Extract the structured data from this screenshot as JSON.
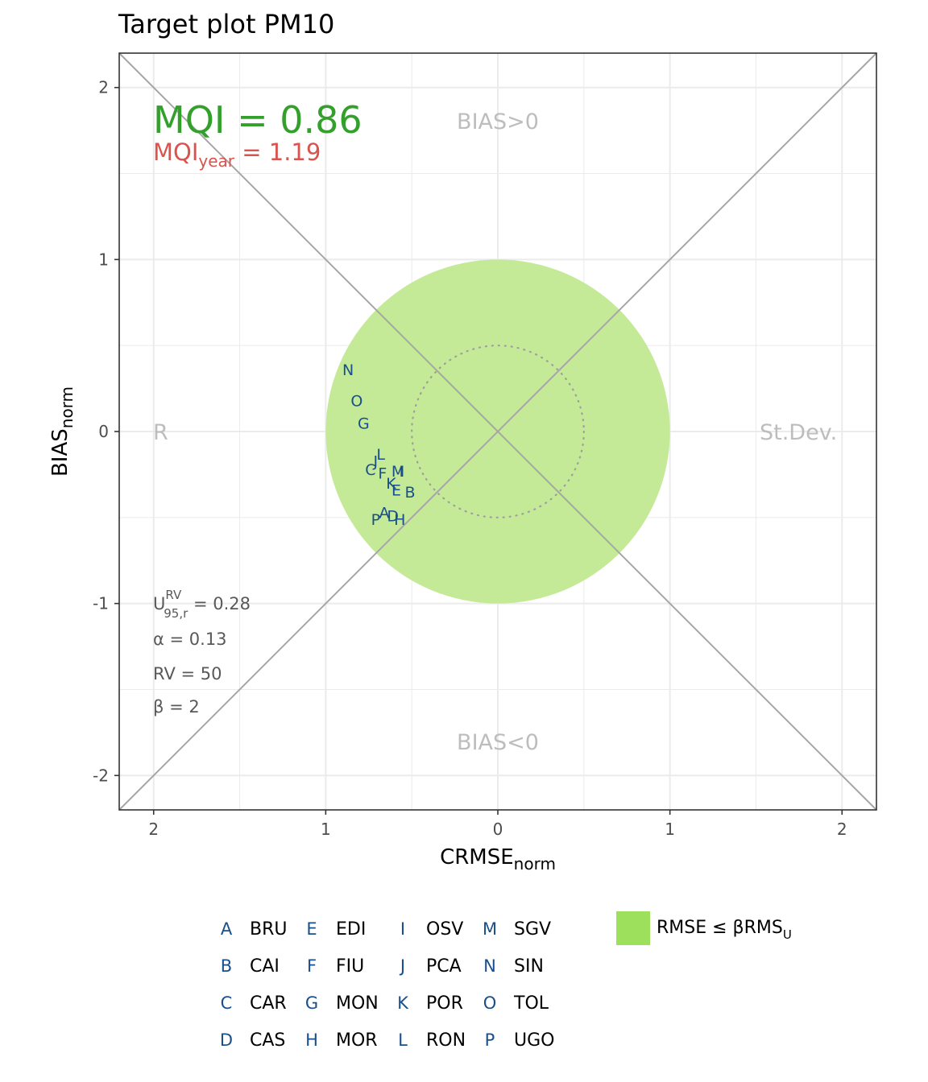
{
  "chart_data": {
    "type": "scatter",
    "title": "Target plot PM10",
    "xlabel": {
      "main": "CRMSE",
      "sub": "norm"
    },
    "ylabel": {
      "main": "BIAS",
      "sub": "norm"
    },
    "xlim": [
      2.2,
      -2.2
    ],
    "ylim": [
      -2.2,
      2.2
    ],
    "x_ticks": [
      2,
      1,
      0,
      1,
      2
    ],
    "x_tick_values": [
      2,
      1,
      0,
      -1,
      -2
    ],
    "y_ticks": [
      "-2",
      "-1",
      "0",
      "1",
      "2"
    ],
    "y_tick_values": [
      -2,
      -1,
      0,
      1,
      2
    ],
    "grid": true,
    "target_circle_radius": 1,
    "inner_circle_radius": 0.5,
    "quadrant_labels": {
      "top": "BIAS>0",
      "bottom": "BIAS<0",
      "left": "R",
      "right": "St.Dev."
    },
    "mqi": {
      "text": "MQI = 0.86",
      "value": 0.86
    },
    "mqi_year": {
      "main": "MQI",
      "sub": "year",
      "rest": " = 1.19",
      "value": 1.19
    },
    "stats": {
      "u": {
        "main": "U",
        "sup": "RV",
        "sub": "95,r",
        "rest": " = 0.28"
      },
      "alpha": "α = 0.13",
      "rv": "RV = 50",
      "beta": "β = 2"
    },
    "points": [
      {
        "code": "A",
        "x": 0.66,
        "y": -0.47
      },
      {
        "code": "B",
        "x": 0.51,
        "y": -0.35
      },
      {
        "code": "C",
        "x": 0.74,
        "y": -0.22
      },
      {
        "code": "D",
        "x": 0.61,
        "y": -0.49
      },
      {
        "code": "E",
        "x": 0.59,
        "y": -0.34
      },
      {
        "code": "F",
        "x": 0.67,
        "y": -0.24
      },
      {
        "code": "G",
        "x": 0.78,
        "y": 0.05
      },
      {
        "code": "H",
        "x": 0.57,
        "y": -0.51
      },
      {
        "code": "I",
        "x": 0.56,
        "y": -0.23
      },
      {
        "code": "J",
        "x": 0.71,
        "y": -0.17
      },
      {
        "code": "K",
        "x": 0.62,
        "y": -0.3
      },
      {
        "code": "L",
        "x": 0.68,
        "y": -0.13
      },
      {
        "code": "M",
        "x": 0.58,
        "y": -0.23
      },
      {
        "code": "N",
        "x": 0.87,
        "y": 0.36
      },
      {
        "code": "O",
        "x": 0.82,
        "y": 0.18
      },
      {
        "code": "P",
        "x": 0.71,
        "y": -0.51
      }
    ],
    "legend": {
      "entries": [
        {
          "code": "A",
          "name": "BRU"
        },
        {
          "code": "B",
          "name": "CAI"
        },
        {
          "code": "C",
          "name": "CAR"
        },
        {
          "code": "D",
          "name": "CAS"
        },
        {
          "code": "E",
          "name": "EDI"
        },
        {
          "code": "F",
          "name": "FIU"
        },
        {
          "code": "G",
          "name": "MON"
        },
        {
          "code": "H",
          "name": "MOR"
        },
        {
          "code": "I",
          "name": "OSV"
        },
        {
          "code": "J",
          "name": "PCA"
        },
        {
          "code": "K",
          "name": "POR"
        },
        {
          "code": "L",
          "name": "RON"
        },
        {
          "code": "M",
          "name": "SGV"
        },
        {
          "code": "N",
          "name": "SIN"
        },
        {
          "code": "O",
          "name": "TOL"
        },
        {
          "code": "P",
          "name": "UGO"
        }
      ],
      "fill_key": {
        "main": "RMSE ≤ βRMS",
        "sub": "U"
      },
      "placement": "bottom"
    }
  },
  "colors": {
    "target_fill": "#c4ea98",
    "legend_fill": "#9de05b",
    "mqi": "#33a02c",
    "mqi_year": "#d9534f",
    "point_text": "#1a4f8a",
    "diagonals": "#a6a6a6",
    "grid": "#ebebeb"
  }
}
